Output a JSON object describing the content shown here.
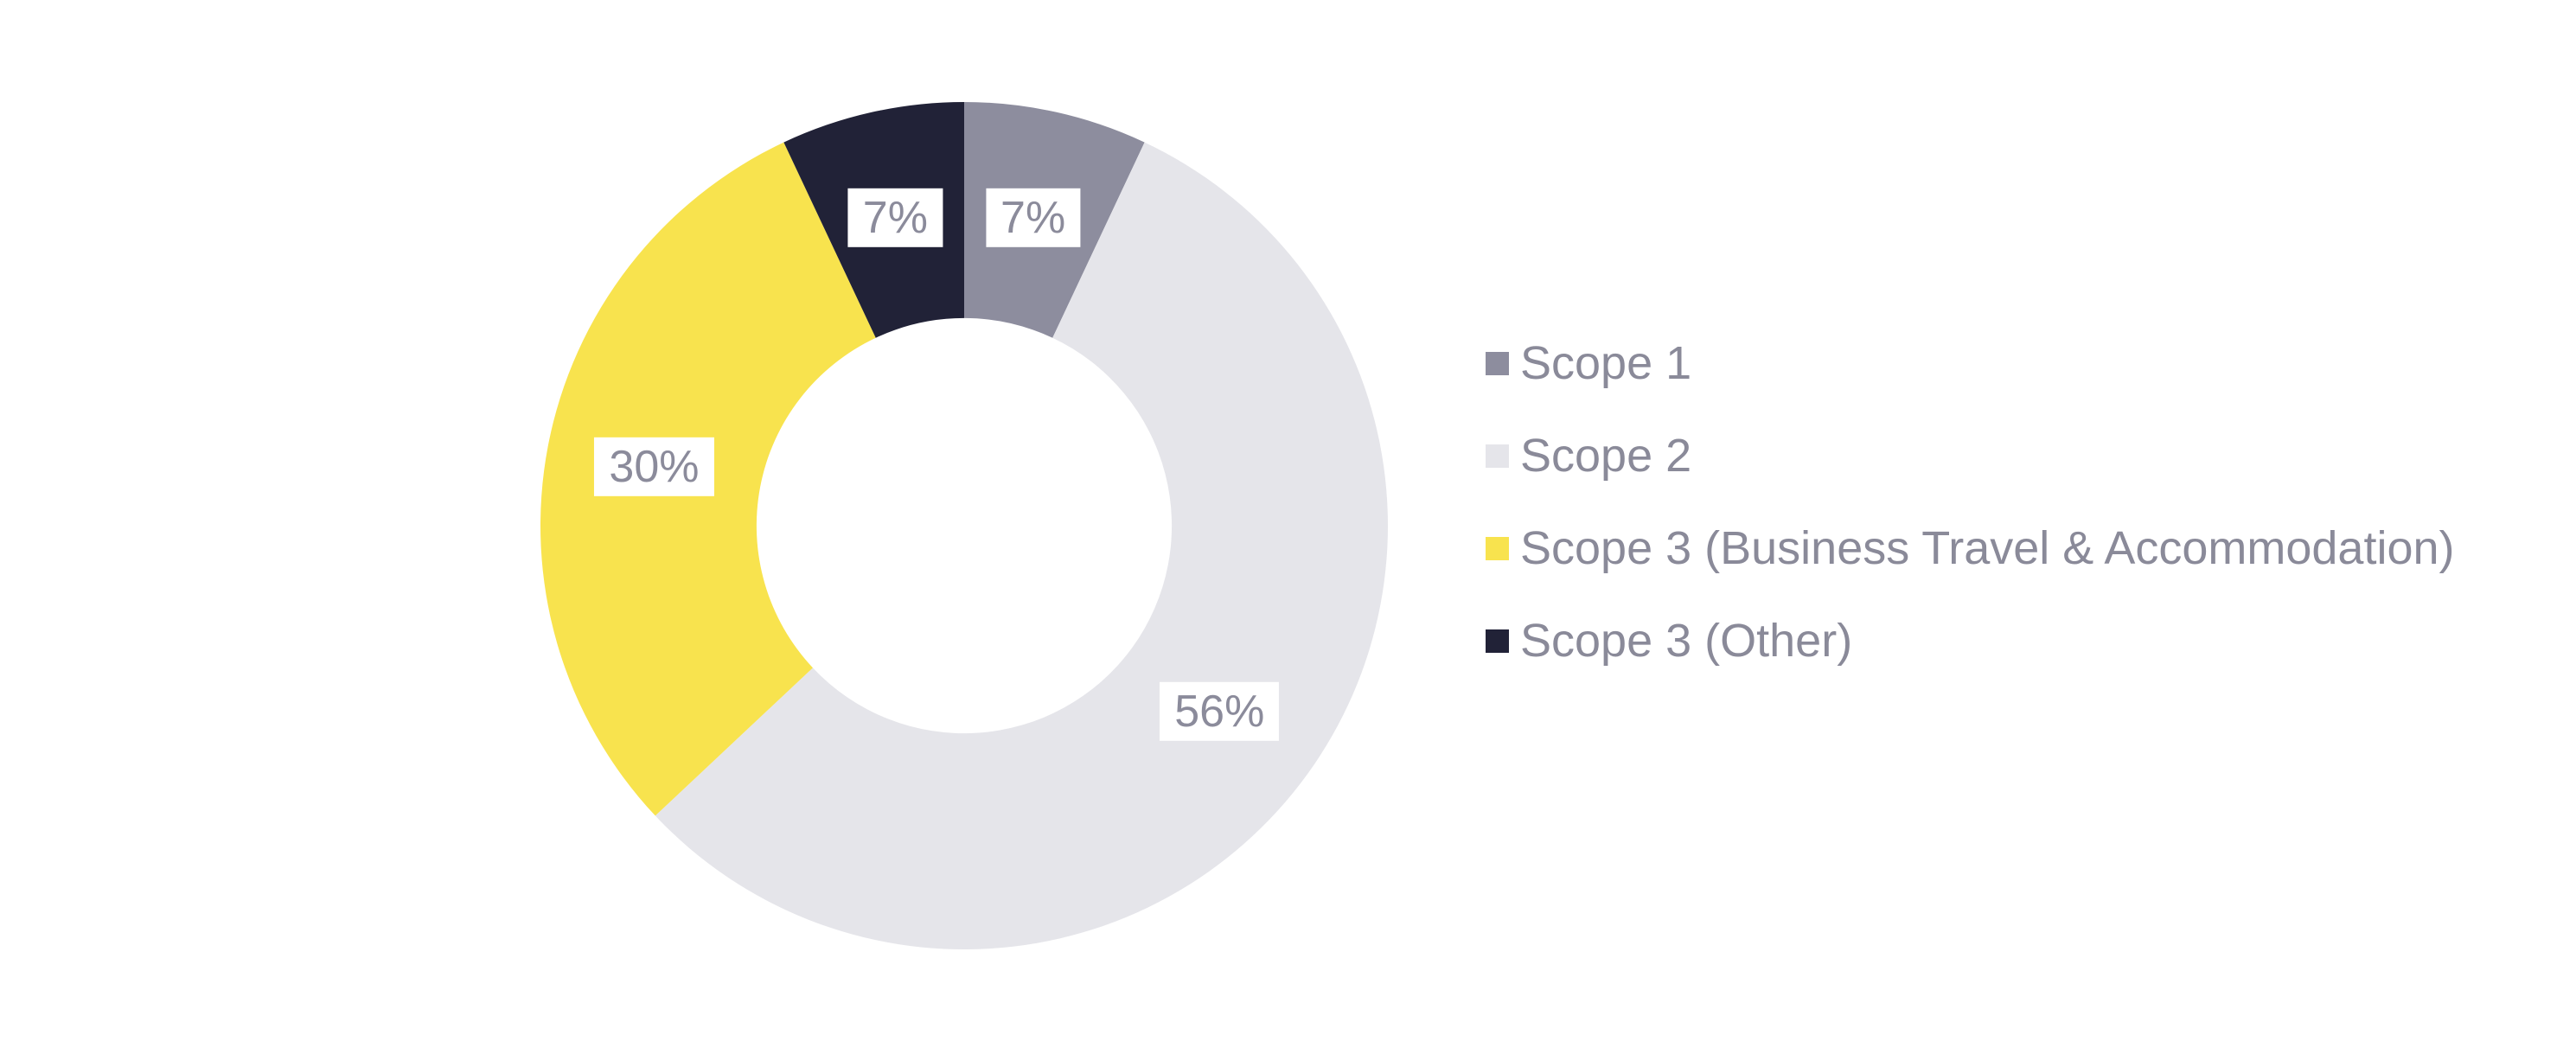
{
  "page": {
    "background": "#ffffff"
  },
  "chart_data": {
    "type": "pie",
    "subtype": "donut",
    "title": "",
    "unit": "%",
    "total": 100,
    "categories": [
      "Scope 1",
      "Scope 2",
      "Scope 3 (Business Travel & Accommodation)",
      "Scope 3 (Other)"
    ],
    "values": [
      7,
      56,
      30,
      7
    ],
    "segments": [
      {
        "label": "Scope 1",
        "value": 7,
        "data_label": "7%",
        "color": "#8D8D9E"
      },
      {
        "label": "Scope 2",
        "value": 56,
        "data_label": "56%",
        "color": "#E5E5EA"
      },
      {
        "label": "Scope 3 (Business Travel & Accommodation)",
        "value": 30,
        "data_label": "30%",
        "color": "#F8E34E"
      },
      {
        "label": "Scope 3 (Other)",
        "value": 7,
        "data_label": "7%",
        "color": "#212237"
      }
    ],
    "start_angle_deg": 0,
    "direction": "clockwise",
    "donut_hole_ratio": 0.49,
    "grid": false,
    "legend_position": "right",
    "label_box_color": "#FFFFFF",
    "label_text_color": "#8B8B9B",
    "legend_text_color": "#8A8A99"
  }
}
